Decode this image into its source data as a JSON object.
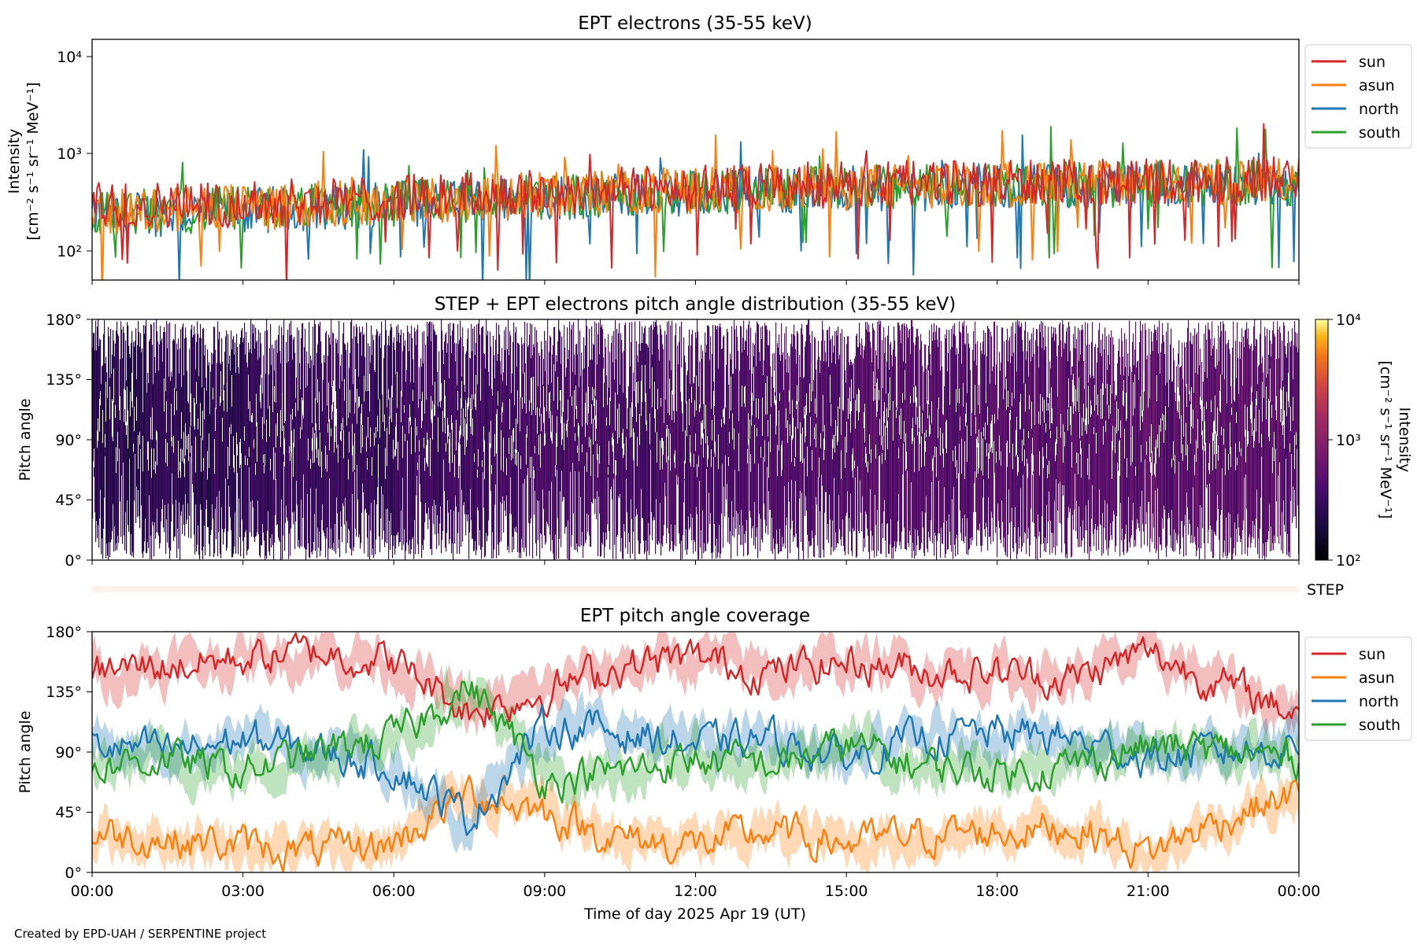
{
  "footer": "Created by EPD-UAH / SERPENTINE project",
  "xlabel": "Time of day 2025 Apr 19 (UT)",
  "x_ticks": [
    "00:00",
    "03:00",
    "06:00",
    "09:00",
    "12:00",
    "15:00",
    "18:00",
    "21:00",
    "00:00"
  ],
  "xlim_hours": [
    0,
    24
  ],
  "series_colors": {
    "sun": "#d62728",
    "asun": "#ff7f0e",
    "north": "#1f77b4",
    "south": "#2ca02c"
  },
  "panels": {
    "intensity": {
      "title": "EPT electrons (35-55 keV)",
      "ylabel_line1": "Intensity",
      "ylabel_line2": "[cm⁻² s⁻¹ sr⁻¹ MeV⁻¹]",
      "y_ticks": [
        "10²",
        "10³",
        "10⁴"
      ],
      "legend": [
        "sun",
        "asun",
        "north",
        "south"
      ]
    },
    "pad": {
      "title": "STEP + EPT electrons pitch angle distribution (35-55 keV)",
      "ylabel": "Pitch angle",
      "y_ticks": [
        "0°",
        "45°",
        "90°",
        "135°",
        "180°"
      ],
      "colorbar_label": "Intensity",
      "colorbar_units": "[cm⁻² s⁻¹ sr⁻¹ MeV⁻¹]",
      "colorbar_ticks": [
        "10²",
        "10³",
        "10⁴"
      ],
      "colormap": "inferno"
    },
    "step": {
      "label": "STEP"
    },
    "coverage": {
      "title": "EPT pitch angle coverage",
      "ylabel": "Pitch angle",
      "y_ticks": [
        "0°",
        "45°",
        "90°",
        "135°",
        "180°"
      ],
      "legend": [
        "sun",
        "asun",
        "north",
        "south"
      ]
    }
  },
  "chart_data": [
    {
      "type": "line",
      "title": "EPT electrons (35-55 keV)",
      "xlabel": "",
      "ylabel": "Intensity [cm⁻² s⁻¹ sr⁻¹ MeV⁻¹]",
      "yscale": "log",
      "ylim": [
        50,
        15000
      ],
      "x": [
        0,
        3,
        6,
        9,
        12,
        15,
        18,
        21,
        24
      ],
      "series": [
        {
          "name": "sun",
          "values": [
            300,
            300,
            350,
            400,
            450,
            480,
            500,
            520,
            550
          ]
        },
        {
          "name": "asun",
          "values": [
            250,
            280,
            320,
            380,
            420,
            450,
            480,
            500,
            520
          ]
        },
        {
          "name": "north",
          "values": [
            230,
            260,
            300,
            350,
            400,
            430,
            460,
            480,
            500
          ]
        },
        {
          "name": "south",
          "values": [
            240,
            270,
            310,
            360,
            410,
            440,
            470,
            490,
            510
          ]
        }
      ],
      "legend_position": "upper right, outside axes"
    },
    {
      "type": "heatmap",
      "title": "STEP + EPT electrons pitch angle distribution (35-55 keV)",
      "ylabel": "Pitch angle",
      "ylim": [
        0,
        180
      ],
      "colorbar_range": [
        100,
        10000
      ],
      "colorbar_scale": "log",
      "x": [
        0,
        3,
        6,
        9,
        12,
        15,
        18,
        21,
        24
      ],
      "median_intensity": [
        250,
        280,
        330,
        380,
        430,
        460,
        490,
        510,
        530
      ]
    },
    {
      "type": "line",
      "title": "EPT pitch angle coverage",
      "xlabel": "Time of day 2025 Apr 19 (UT)",
      "ylabel": "Pitch angle",
      "ylim": [
        0,
        180
      ],
      "x": [
        0,
        1.5,
        3,
        4.5,
        6,
        7.5,
        9,
        10.5,
        12,
        13.5,
        15,
        16.5,
        18,
        19.5,
        21,
        22.5,
        24
      ],
      "series": [
        {
          "name": "sun",
          "values": [
            150,
            155,
            160,
            165,
            158,
            120,
            135,
            155,
            160,
            150,
            158,
            152,
            150,
            145,
            165,
            140,
            120
          ]
        },
        {
          "name": "asun",
          "values": [
            30,
            25,
            20,
            15,
            22,
            60,
            45,
            25,
            20,
            30,
            22,
            28,
            30,
            35,
            15,
            40,
            60
          ]
        },
        {
          "name": "north",
          "values": [
            95,
            90,
            100,
            90,
            80,
            40,
            110,
            105,
            95,
            100,
            85,
            100,
            105,
            100,
            85,
            90,
            95
          ]
        },
        {
          "name": "south",
          "values": [
            80,
            85,
            75,
            90,
            100,
            140,
            70,
            75,
            85,
            80,
            95,
            80,
            75,
            80,
            95,
            90,
            85
          ]
        }
      ],
      "legend_position": "upper right, outside axes"
    }
  ]
}
